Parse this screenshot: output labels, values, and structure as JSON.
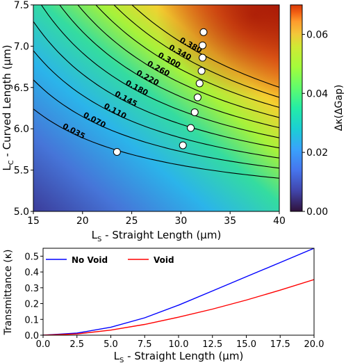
{
  "chart_data": [
    {
      "type": "heatmap",
      "xlabel": "L",
      "xlabel_sub": "S",
      "xlabel_rest": " - Straight Length (μm)",
      "ylabel": "L",
      "ylabel_sub": "C",
      "ylabel_rest": " - Curved Length (μm)",
      "xlim": [
        15,
        40
      ],
      "ylim": [
        5.0,
        7.5
      ],
      "x_ticks": [
        "15",
        "20",
        "25",
        "30",
        "35",
        "40"
      ],
      "y_ticks": [
        "5.0",
        "5.5",
        "6.0",
        "6.5",
        "7.0",
        "7.5"
      ],
      "colorbar": {
        "label": "Δκ(ΔGap)",
        "range": [
          0.0,
          0.07
        ],
        "ticks": [
          "0.00",
          "0.02",
          "0.04",
          "0.06"
        ],
        "colormap": "turbo"
      },
      "contours": [
        {
          "level": "0.035",
          "label": "0.035"
        },
        {
          "level": "0.070",
          "label": "0.070"
        },
        {
          "level": "0.110",
          "label": "0.110"
        },
        {
          "level": "0.145",
          "label": "0.145"
        },
        {
          "level": "0.180",
          "label": "0.180"
        },
        {
          "level": "0.220",
          "label": "0.220"
        },
        {
          "level": "0.260",
          "label": "0.260"
        },
        {
          "level": "0.300",
          "label": "0.300"
        },
        {
          "level": "0.340",
          "label": "0.340"
        },
        {
          "level": "0.380",
          "label": "0.380"
        }
      ],
      "points": [
        {
          "x": 23.5,
          "y": 5.72
        },
        {
          "x": 30.2,
          "y": 5.8
        },
        {
          "x": 31.0,
          "y": 6.01
        },
        {
          "x": 31.4,
          "y": 6.2
        },
        {
          "x": 31.7,
          "y": 6.38
        },
        {
          "x": 31.9,
          "y": 6.55
        },
        {
          "x": 32.1,
          "y": 6.7
        },
        {
          "x": 32.2,
          "y": 6.86
        },
        {
          "x": 32.2,
          "y": 7.01
        },
        {
          "x": 32.3,
          "y": 7.17
        }
      ]
    },
    {
      "type": "line",
      "xlabel": "L",
      "xlabel_sub": "S",
      "xlabel_rest": " - Straight Length (μm)",
      "ylabel": "Transmittance (κ)",
      "xlim": [
        0,
        20
      ],
      "ylim": [
        0,
        0.55
      ],
      "x_ticks": [
        "0.0",
        "2.5",
        "5.0",
        "7.5",
        "10.0",
        "12.5",
        "15.0",
        "17.5",
        "20.0"
      ],
      "y_ticks": [
        "0.0",
        "0.1",
        "0.2",
        "0.3",
        "0.4",
        "0.5"
      ],
      "legend_position": "top-left",
      "series": [
        {
          "name": "No Void",
          "color": "#0000ff",
          "x": [
            0,
            2.5,
            5,
            7.5,
            10,
            12.5,
            15,
            17.5,
            20
          ],
          "values": [
            0.0,
            0.013,
            0.05,
            0.11,
            0.19,
            0.28,
            0.37,
            0.46,
            0.55
          ]
        },
        {
          "name": "Void",
          "color": "#ff0000",
          "x": [
            0,
            2.5,
            5,
            7.5,
            10,
            12.5,
            15,
            17.5,
            20
          ],
          "values": [
            0.0,
            0.008,
            0.032,
            0.068,
            0.114,
            0.165,
            0.222,
            0.285,
            0.352
          ]
        }
      ]
    }
  ]
}
